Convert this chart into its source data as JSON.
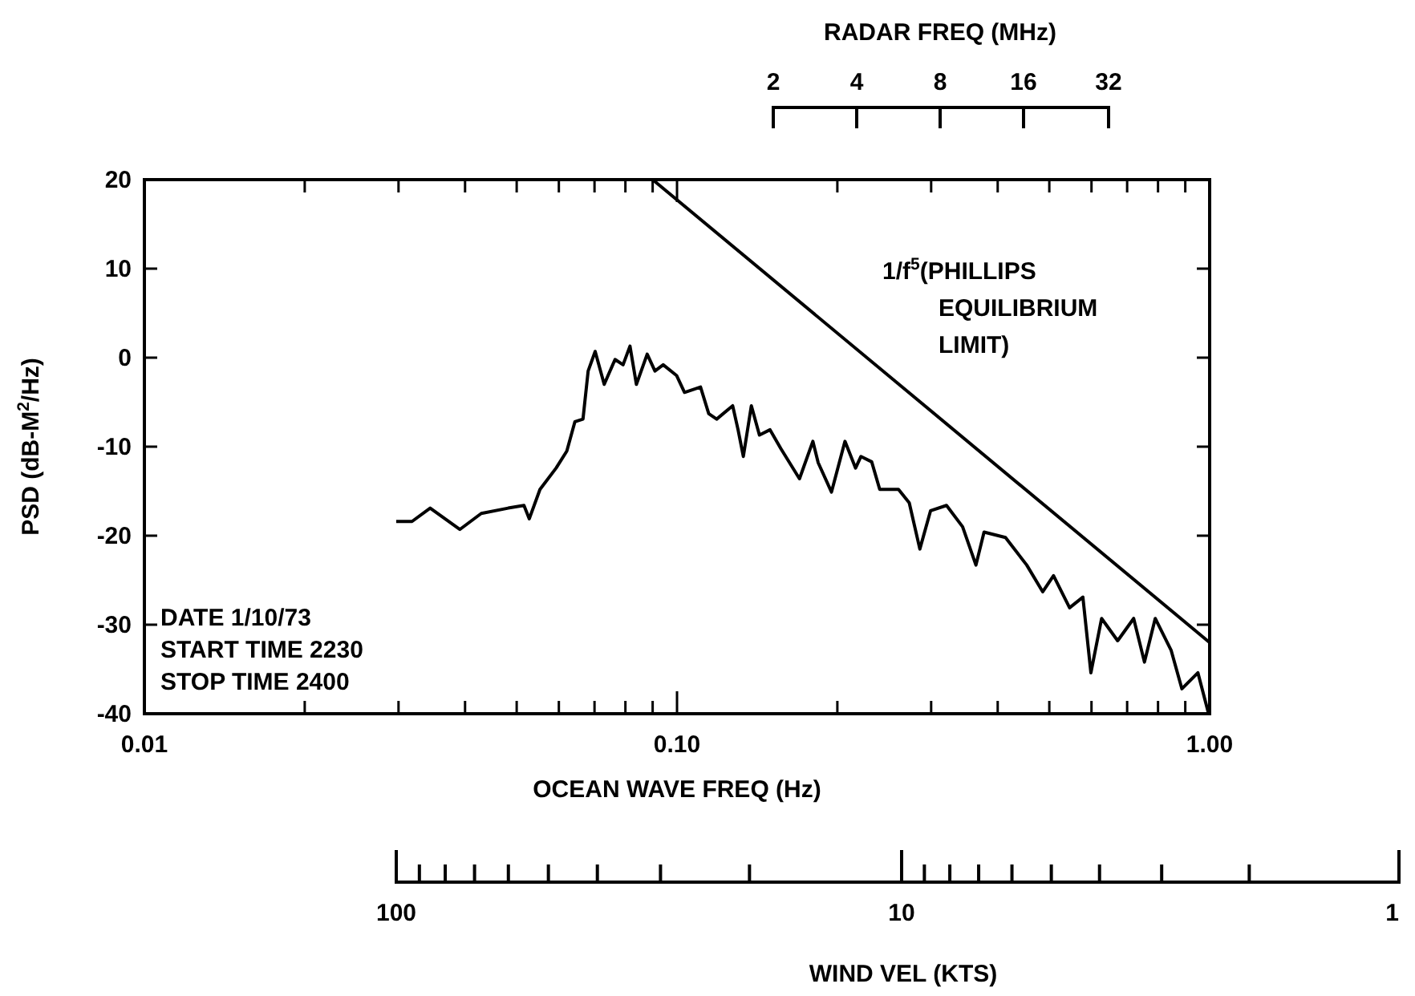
{
  "chart_data": {
    "type": "line",
    "xlabel": "OCEAN WAVE FREQ (Hz)",
    "ylabel": "PSD (dB-M$^{2}$/Hz)",
    "log": "x",
    "grid": false,
    "legend": false,
    "marker": "none",
    "line_style": "solid",
    "xlim": [
      0.01,
      1
    ],
    "annotations": [
      "DATE 1/10/73",
      "START TIME 2230",
      "STOP TIME 2400",
      "RADAR FREQ (MHz)",
      "2",
      "4",
      "8",
      "16",
      "32",
      "WIND VEL (KTS)",
      "100",
      "10",
      "1"
    ],
    "xticks": [
      {
        "value": 0.01,
        "label": "0.01"
      },
      {
        "value": 0.02,
        "label": null
      },
      {
        "value": 0.03,
        "label": null
      },
      {
        "value": 0.04,
        "label": null
      },
      {
        "value": 0.05,
        "label": null
      },
      {
        "value": 0.06,
        "label": null
      },
      {
        "value": 0.07,
        "label": null
      },
      {
        "value": 0.08,
        "label": null
      },
      {
        "value": 0.09,
        "label": null
      },
      {
        "value": 0.1,
        "label": "0.10"
      },
      {
        "value": 0.2,
        "label": null
      },
      {
        "value": 0.3,
        "label": null
      },
      {
        "value": 0.4,
        "label": null
      },
      {
        "value": 0.5,
        "label": null
      },
      {
        "value": 0.6,
        "label": null
      },
      {
        "value": 0.7,
        "label": null
      },
      {
        "value": 0.8,
        "label": null
      },
      {
        "value": 0.9,
        "label": null
      },
      {
        "value": 1,
        "label": "1.00"
      }
    ],
    "ylim": [
      -40,
      20
    ],
    "yticks": [
      -40,
      -30,
      -20,
      -10,
      0,
      10,
      20
    ],
    "series": [
      {
        "color": "#000000",
        "x": [
          0.0297,
          0.0318,
          0.0344,
          0.0391,
          0.0429,
          0.0482,
          0.0516,
          0.0528,
          0.0553,
          0.0593,
          0.0621,
          0.0643,
          0.0666,
          0.0681,
          0.0702,
          0.073,
          0.0765,
          0.0792,
          0.0816,
          0.0839,
          0.0879,
          0.0909,
          0.0942,
          0.0998,
          0.1033,
          0.1107,
          0.1147,
          0.1187,
          0.1272,
          0.1302,
          0.1332,
          0.1379,
          0.1428,
          0.1495,
          0.1566,
          0.1698,
          0.1799,
          0.1841,
          0.195,
          0.2067,
          0.2164,
          0.2215,
          0.232,
          0.2402,
          0.2605,
          0.2729,
          0.2857,
          0.2992,
          0.3206,
          0.3437,
          0.3641,
          0.3771,
          0.4137,
          0.4535,
          0.486,
          0.5092,
          0.5458,
          0.5781,
          0.5985,
          0.6269,
          0.6719,
          0.72,
          0.7544,
          0.7904,
          0.8469,
          0.887,
          0.9506,
          0.9955
        ],
        "values": [
          -18.4,
          -18.4,
          -16.9,
          -19.3,
          -17.5,
          -16.9,
          -16.6,
          -18.1,
          -14.8,
          -12.4,
          -10.5,
          -7.2,
          -6.9,
          -1.5,
          0.7,
          -3.0,
          -0.2,
          -0.8,
          1.3,
          -3.0,
          0.4,
          -1.5,
          -0.8,
          -2.0,
          -3.9,
          -3.3,
          -6.3,
          -6.9,
          -5.4,
          -8.1,
          -11.1,
          -5.4,
          -8.7,
          -8.1,
          -10.2,
          -13.6,
          -9.4,
          -11.8,
          -15.1,
          -9.4,
          -12.4,
          -11.1,
          -11.7,
          -14.8,
          -14.8,
          -16.3,
          -21.5,
          -17.2,
          -16.6,
          -19.0,
          -23.3,
          -19.6,
          -20.2,
          -23.3,
          -26.3,
          -24.5,
          -28.1,
          -26.9,
          -35.4,
          -29.3,
          -31.8,
          -29.3,
          -34.2,
          -29.3,
          -32.9,
          -37.2,
          -35.4,
          -40
        ]
      },
      {
        "name": "1/f$^{5}$(PHILLIPS EQUILIBRIUM LIMIT)",
        "color": "#000000",
        "x": [
          0.09,
          1
        ],
        "values": [
          20,
          -32
        ]
      }
    ]
  }
}
